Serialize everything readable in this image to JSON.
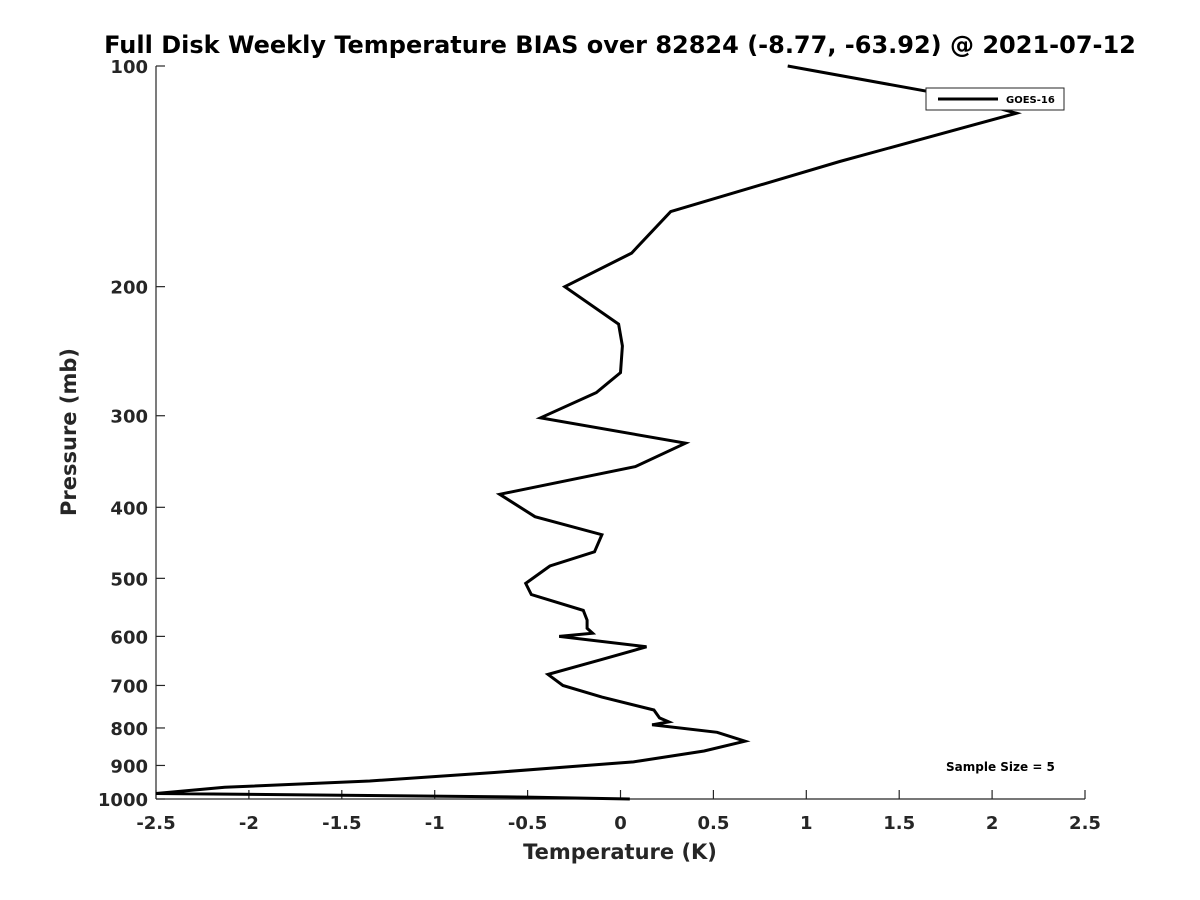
{
  "chart_data": {
    "type": "line",
    "title": "Full Disk Weekly Temperature BIAS over 82824 (-8.77, -63.92) @ 2021-07-12",
    "xlabel": "Temperature (K)",
    "ylabel": "Pressure (mb)",
    "xlim": [
      -2.5,
      2.5
    ],
    "ylim": [
      1000,
      100
    ],
    "yscale": "log",
    "y_reversed": true,
    "grid": false,
    "legend_position": "top-right",
    "x_ticks": [
      -2.5,
      -2,
      -1.5,
      -1,
      -0.5,
      0,
      0.5,
      1,
      1.5,
      2,
      2.5
    ],
    "x_tick_labels": [
      "-2.5",
      "-2",
      "-1.5",
      "-1",
      "-0.5",
      "0",
      "0.5",
      "1",
      "1.5",
      "2",
      "2.5"
    ],
    "y_ticks": [
      100,
      200,
      300,
      400,
      500,
      600,
      700,
      800,
      900,
      1000
    ],
    "y_tick_labels": [
      "100",
      "200",
      "300",
      "400",
      "500",
      "600",
      "700",
      "800",
      "900",
      "1000"
    ],
    "line_color": "#000000",
    "series": [
      {
        "name": "GOES-16",
        "points": [
          {
            "x": 0.9,
            "y": 100
          },
          {
            "x": 1.8,
            "y": 110
          },
          {
            "x": 2.13,
            "y": 116
          },
          {
            "x": 1.18,
            "y": 135
          },
          {
            "x": 0.27,
            "y": 158
          },
          {
            "x": 0.06,
            "y": 180
          },
          {
            "x": -0.3,
            "y": 200
          },
          {
            "x": -0.01,
            "y": 225
          },
          {
            "x": 0.01,
            "y": 241
          },
          {
            "x": 0.0,
            "y": 262
          },
          {
            "x": -0.13,
            "y": 279
          },
          {
            "x": -0.43,
            "y": 302
          },
          {
            "x": 0.35,
            "y": 327
          },
          {
            "x": 0.08,
            "y": 352
          },
          {
            "x": -0.65,
            "y": 384
          },
          {
            "x": -0.46,
            "y": 412
          },
          {
            "x": -0.1,
            "y": 436
          },
          {
            "x": -0.14,
            "y": 460
          },
          {
            "x": -0.38,
            "y": 481
          },
          {
            "x": -0.51,
            "y": 508
          },
          {
            "x": -0.48,
            "y": 526
          },
          {
            "x": -0.2,
            "y": 553
          },
          {
            "x": -0.18,
            "y": 570
          },
          {
            "x": -0.18,
            "y": 585
          },
          {
            "x": -0.15,
            "y": 594
          },
          {
            "x": -0.33,
            "y": 600
          },
          {
            "x": 0.14,
            "y": 620
          },
          {
            "x": -0.1,
            "y": 645
          },
          {
            "x": -0.39,
            "y": 676
          },
          {
            "x": -0.31,
            "y": 700
          },
          {
            "x": -0.1,
            "y": 726
          },
          {
            "x": 0.18,
            "y": 756
          },
          {
            "x": 0.21,
            "y": 775
          },
          {
            "x": 0.26,
            "y": 785
          },
          {
            "x": 0.17,
            "y": 792
          },
          {
            "x": 0.52,
            "y": 811
          },
          {
            "x": 0.67,
            "y": 834
          },
          {
            "x": 0.45,
            "y": 860
          },
          {
            "x": 0.07,
            "y": 890
          },
          {
            "x": -0.24,
            "y": 902
          },
          {
            "x": -0.68,
            "y": 920
          },
          {
            "x": -1.35,
            "y": 945
          },
          {
            "x": -2.13,
            "y": 964
          },
          {
            "x": -2.5,
            "y": 983
          },
          {
            "x": -1.5,
            "y": 988
          },
          {
            "x": -0.5,
            "y": 994
          },
          {
            "x": 0.05,
            "y": 1000
          }
        ]
      }
    ],
    "annotation": "Sample Size = 5"
  }
}
